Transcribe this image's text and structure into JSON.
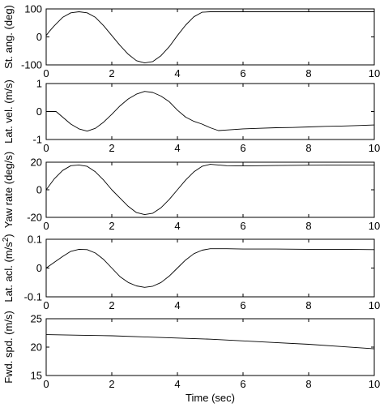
{
  "chart_data": [
    {
      "type": "line",
      "ylabel": "St. ang. (deg)",
      "xlim": [
        0,
        10
      ],
      "ylim": [
        -100,
        100
      ],
      "xticks": [
        0,
        2,
        4,
        6,
        8,
        10
      ],
      "yticks": [
        -100,
        0,
        100
      ],
      "grid": false,
      "series": [
        {
          "x": [
            0,
            0.1,
            0.25,
            0.5,
            0.75,
            1.0,
            1.25,
            1.5,
            1.75,
            2.0,
            2.25,
            2.5,
            2.75,
            3.0,
            3.25,
            3.5,
            3.75,
            4.0,
            4.25,
            4.5,
            4.75,
            5.0,
            6,
            7,
            8,
            9,
            10
          ],
          "y": [
            5,
            20,
            40,
            70,
            86,
            90,
            86,
            70,
            40,
            5,
            -30,
            -62,
            -85,
            -93,
            -88,
            -67,
            -35,
            5,
            42,
            72,
            88,
            90,
            90,
            90,
            90,
            90,
            90
          ]
        }
      ]
    },
    {
      "type": "line",
      "ylabel": "Lat. vel. (m/s)",
      "xlim": [
        0,
        10
      ],
      "ylim": [
        -1,
        1
      ],
      "xticks": [
        0,
        2,
        4,
        6,
        8,
        10
      ],
      "yticks": [
        -1,
        0,
        1
      ],
      "grid": false,
      "series": [
        {
          "x": [
            0,
            0.3,
            0.5,
            0.75,
            1.0,
            1.25,
            1.5,
            1.75,
            2.0,
            2.25,
            2.5,
            2.75,
            3.0,
            3.25,
            3.5,
            3.75,
            4.0,
            4.25,
            4.5,
            4.75,
            5.0,
            5.25,
            5.5,
            6,
            6.5,
            7,
            7.5,
            8,
            8.5,
            9,
            9.5,
            10
          ],
          "y": [
            0.0,
            0.0,
            -0.2,
            -0.45,
            -0.62,
            -0.7,
            -0.6,
            -0.38,
            -0.1,
            0.2,
            0.45,
            0.62,
            0.72,
            0.68,
            0.55,
            0.35,
            0.05,
            -0.2,
            -0.35,
            -0.45,
            -0.58,
            -0.68,
            -0.66,
            -0.62,
            -0.6,
            -0.58,
            -0.57,
            -0.55,
            -0.53,
            -0.52,
            -0.5,
            -0.48
          ]
        }
      ]
    },
    {
      "type": "line",
      "ylabel": "Yaw rate (deg/s)",
      "xlim": [
        0,
        10
      ],
      "ylim": [
        -20,
        20
      ],
      "xticks": [
        0,
        2,
        4,
        6,
        8,
        10
      ],
      "yticks": [
        -20,
        0,
        20
      ],
      "grid": false,
      "series": [
        {
          "x": [
            0,
            0.25,
            0.5,
            0.75,
            1.0,
            1.25,
            1.5,
            1.75,
            2.0,
            2.25,
            2.5,
            2.75,
            3.0,
            3.25,
            3.5,
            3.75,
            4.0,
            4.25,
            4.5,
            4.75,
            5.0,
            5.5,
            6,
            7,
            8,
            9,
            10
          ],
          "y": [
            0,
            8,
            14,
            17.5,
            18,
            17,
            13,
            7,
            0,
            -6,
            -12,
            -16.5,
            -18,
            -17,
            -13,
            -7,
            0,
            7,
            13,
            17,
            18.5,
            17.5,
            17.3,
            17.6,
            17.8,
            18,
            18
          ]
        }
      ]
    },
    {
      "type": "line",
      "ylabel": "Lat. acl. (m/s^2)",
      "ylabel_main": "Lat. acl. (m/s",
      "ylabel_sup": "2",
      "ylabel_tail": ")",
      "xlim": [
        0,
        10
      ],
      "ylim": [
        -0.1,
        0.1
      ],
      "xticks": [
        0,
        2,
        4,
        6,
        8,
        10
      ],
      "yticks": [
        -0.1,
        0,
        0.1
      ],
      "grid": false,
      "series": [
        {
          "x": [
            0,
            0.25,
            0.5,
            0.75,
            1.0,
            1.25,
            1.5,
            1.75,
            2.0,
            2.25,
            2.5,
            2.75,
            3.0,
            3.25,
            3.5,
            3.75,
            4.0,
            4.25,
            4.5,
            4.75,
            5.0,
            5.5,
            6,
            7,
            8,
            9,
            10
          ],
          "y": [
            0,
            0.02,
            0.04,
            0.058,
            0.065,
            0.064,
            0.052,
            0.03,
            0.0,
            -0.03,
            -0.05,
            -0.062,
            -0.067,
            -0.063,
            -0.05,
            -0.028,
            0.0,
            0.028,
            0.05,
            0.062,
            0.067,
            0.067,
            0.066,
            0.066,
            0.065,
            0.065,
            0.064
          ]
        }
      ]
    },
    {
      "type": "line",
      "ylabel": "Fwd. spd. (m/s)",
      "xlabel": "Time (sec)",
      "xlim": [
        0,
        10
      ],
      "ylim": [
        15,
        25
      ],
      "xticks": [
        0,
        2,
        4,
        6,
        8,
        10
      ],
      "yticks": [
        15,
        20,
        25
      ],
      "grid": false,
      "series": [
        {
          "x": [
            0,
            1,
            2,
            3,
            4,
            5,
            6,
            7,
            8,
            9,
            10
          ],
          "y": [
            22.2,
            22.1,
            22.0,
            21.8,
            21.6,
            21.4,
            21.1,
            20.8,
            20.5,
            20.1,
            19.7
          ]
        }
      ]
    }
  ]
}
